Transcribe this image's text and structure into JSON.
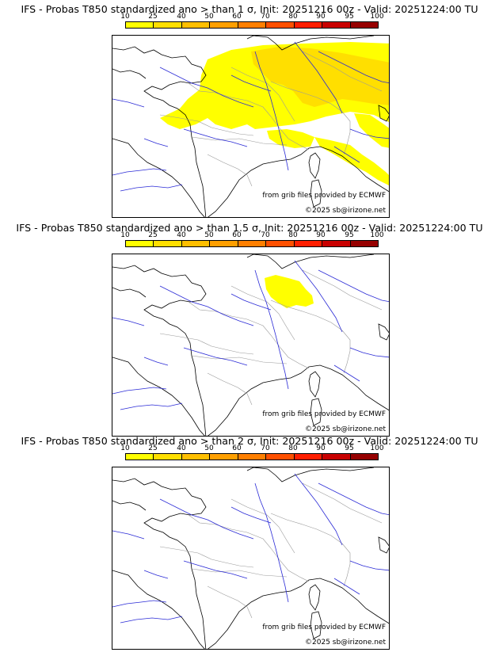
{
  "colorbar": {
    "ticks": [
      "10",
      "25",
      "40",
      "50",
      "60",
      "70",
      "80",
      "90",
      "95",
      "100"
    ],
    "colors": [
      "#ffff00",
      "#ffdf00",
      "#ffbf00",
      "#ff9f00",
      "#ff7f00",
      "#ff5000",
      "#ff1e00",
      "#c80000",
      "#960000",
      "#5a0000"
    ]
  },
  "credits": {
    "source": "from grib files provided by ECMWF",
    "copyright": "©2025 sb@irizone.net"
  },
  "panels": [
    {
      "title": "IFS - Probas T850  standardized ano > than 1 σ, Init: 20251216 00z - Valid: 20251224:00 TU"
    },
    {
      "title": "IFS - Probas T850  standardized ano > than 1.5 σ, Init: 20251216 00z - Valid: 20251224:00 TU"
    },
    {
      "title": "IFS - Probas T850  standardized ano > than 2 σ, Init: 20251216 00z - Valid: 20251224:00 TU"
    }
  ],
  "colors": {
    "coast": "#000000",
    "rivers": "#2b2bd6",
    "borders": "#9a9a9a",
    "prob_10": "#ffff00",
    "prob_25": "#ffdf00"
  }
}
